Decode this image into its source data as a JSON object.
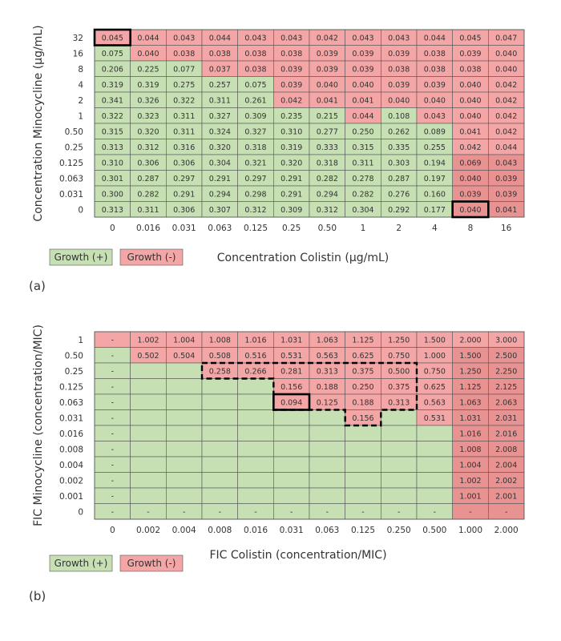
{
  "colors": {
    "growth_pos": "#c6e0b4",
    "growth_neg": "#f4a6a6",
    "growth_neg_dark": "#e99292",
    "grid": "#555555"
  },
  "chart_data": [
    {
      "type": "heatmap",
      "panel": "(a)",
      "xlabel": "Concentration Colistin (µg/mL)",
      "ylabel": "Concentration Minocycline (µg/mL)",
      "x_labels": [
        "0",
        "0.016",
        "0.031",
        "0.063",
        "0.125",
        "0.25",
        "0.50",
        "1",
        "2",
        "4",
        "8",
        "16"
      ],
      "y_labels": [
        "32",
        "16",
        "8",
        "4",
        "2",
        "1",
        "0.50",
        "0.25",
        "0.125",
        "0.063",
        "0.031",
        "0"
      ],
      "legend": [
        "Growth (+)",
        "Growth (-)"
      ],
      "values": [
        [
          "0.045",
          "0.044",
          "0.043",
          "0.044",
          "0.043",
          "0.043",
          "0.042",
          "0.043",
          "0.043",
          "0.044",
          "0.045",
          "0.047"
        ],
        [
          "0.075",
          "0.040",
          "0.038",
          "0.038",
          "0.038",
          "0.038",
          "0.039",
          "0.039",
          "0.039",
          "0.038",
          "0.039",
          "0.040"
        ],
        [
          "0.206",
          "0.225",
          "0.077",
          "0.037",
          "0.038",
          "0.039",
          "0.039",
          "0.039",
          "0.038",
          "0.038",
          "0.038",
          "0.040"
        ],
        [
          "0.319",
          "0.319",
          "0.275",
          "0.257",
          "0.075",
          "0.039",
          "0.040",
          "0.040",
          "0.039",
          "0.039",
          "0.040",
          "0.042"
        ],
        [
          "0.341",
          "0.326",
          "0.322",
          "0.311",
          "0.261",
          "0.042",
          "0.041",
          "0.041",
          "0.040",
          "0.040",
          "0.040",
          "0.042"
        ],
        [
          "0.322",
          "0.323",
          "0.311",
          "0.327",
          "0.309",
          "0.235",
          "0.215",
          "0.044",
          "0.108",
          "0.043",
          "0.040",
          "0.042"
        ],
        [
          "0.315",
          "0.320",
          "0.311",
          "0.324",
          "0.327",
          "0.310",
          "0.277",
          "0.250",
          "0.262",
          "0.089",
          "0.041",
          "0.042"
        ],
        [
          "0.313",
          "0.312",
          "0.316",
          "0.320",
          "0.318",
          "0.319",
          "0.333",
          "0.315",
          "0.335",
          "0.255",
          "0.042",
          "0.044"
        ],
        [
          "0.310",
          "0.306",
          "0.306",
          "0.304",
          "0.321",
          "0.320",
          "0.318",
          "0.311",
          "0.303",
          "0.194",
          "0.069",
          "0.043"
        ],
        [
          "0.301",
          "0.287",
          "0.297",
          "0.291",
          "0.297",
          "0.291",
          "0.282",
          "0.278",
          "0.287",
          "0.197",
          "0.040",
          "0.039"
        ],
        [
          "0.300",
          "0.282",
          "0.291",
          "0.294",
          "0.298",
          "0.291",
          "0.294",
          "0.282",
          "0.276",
          "0.160",
          "0.039",
          "0.039"
        ],
        [
          "0.313",
          "0.311",
          "0.306",
          "0.307",
          "0.312",
          "0.309",
          "0.312",
          "0.304",
          "0.292",
          "0.177",
          "0.040",
          "0.041"
        ]
      ],
      "growth": [
        "NNNNNNNNNNNN",
        "GNNNNNNNNNNN",
        "GGGNNNNNNNNN",
        "GGGGGNNNNNNN",
        "GGGGGNNNNNNN",
        "GGGGGGGNGNNN",
        "GGGGGGGGGGNN",
        "GGGGGGGGGGNN",
        "GGGGGGGGGGNN",
        "GGGGGGGGGGNN",
        "GGGGGGGGGGNN",
        "GGGGGGGGGGNN"
      ],
      "highlighted_cells": [
        [
          0,
          0
        ],
        [
          11,
          10
        ]
      ]
    },
    {
      "type": "heatmap",
      "panel": "(b)",
      "xlabel": "FIC Colistin (concentration/MIC)",
      "ylabel": "FIC Minocycline (concentration/MIC)",
      "x_labels": [
        "0",
        "0.002",
        "0.004",
        "0.008",
        "0.016",
        "0.031",
        "0.063",
        "0.125",
        "0.250",
        "0.500",
        "1.000",
        "2.000"
      ],
      "y_labels": [
        "1",
        "0.50",
        "0.25",
        "0.125",
        "0.063",
        "0.031",
        "0.016",
        "0.008",
        "0.004",
        "0.002",
        "0.001",
        "0"
      ],
      "legend": [
        "Growth (+)",
        "Growth (-)"
      ],
      "values": [
        [
          "-",
          "1.002",
          "1.004",
          "1.008",
          "1.016",
          "1.031",
          "1.063",
          "1.125",
          "1.250",
          "1.500",
          "2.000",
          "3.000"
        ],
        [
          "-",
          "0.502",
          "0.504",
          "0.508",
          "0.516",
          "0.531",
          "0.563",
          "0.625",
          "0.750",
          "1.000",
          "1.500",
          "2.500"
        ],
        [
          "-",
          "",
          "",
          "0.258",
          "0.266",
          "0.281",
          "0.313",
          "0.375",
          "0.500",
          "0.750",
          "1.250",
          "2.250"
        ],
        [
          "-",
          "",
          "",
          "",
          "",
          "0.156",
          "0.188",
          "0.250",
          "0.375",
          "0.625",
          "1.125",
          "2.125"
        ],
        [
          "-",
          "",
          "",
          "",
          "",
          "0.094",
          "0.125",
          "0.188",
          "0.313",
          "0.563",
          "1.063",
          "2.063"
        ],
        [
          "-",
          "",
          "",
          "",
          "",
          "",
          "",
          "0.156",
          "",
          "0.531",
          "1.031",
          "2.031"
        ],
        [
          "-",
          "",
          "",
          "",
          "",
          "",
          "",
          "",
          "",
          "",
          "1.016",
          "2.016"
        ],
        [
          "-",
          "",
          "",
          "",
          "",
          "",
          "",
          "",
          "",
          "",
          "1.008",
          "2.008"
        ],
        [
          "-",
          "",
          "",
          "",
          "",
          "",
          "",
          "",
          "",
          "",
          "1.004",
          "2.004"
        ],
        [
          "-",
          "",
          "",
          "",
          "",
          "",
          "",
          "",
          "",
          "",
          "1.002",
          "2.002"
        ],
        [
          "-",
          "",
          "",
          "",
          "",
          "",
          "",
          "",
          "",
          "",
          "1.001",
          "2.001"
        ],
        [
          "-",
          "-",
          "-",
          "-",
          "-",
          "-",
          "-",
          "-",
          "-",
          "-",
          "-",
          "-"
        ]
      ],
      "growth": [
        "NNNNNNNNNNNN",
        "GNNNNNNNNNNN",
        "GGGNNNNNNNNN",
        "GGGGGNNNNNNN",
        "GGGGGNNNNNNN",
        "GGGGGGGNGNNN",
        "GGGGGGGGGGNN",
        "GGGGGGGGGGNN",
        "GGGGGGGGGGNN",
        "GGGGGGGGGGNN",
        "GGGGGGGGGGNN",
        "GGGGGGGGGGNN"
      ],
      "highlighted_cells": [
        [
          4,
          5
        ]
      ],
      "dashed_region": true
    }
  ]
}
